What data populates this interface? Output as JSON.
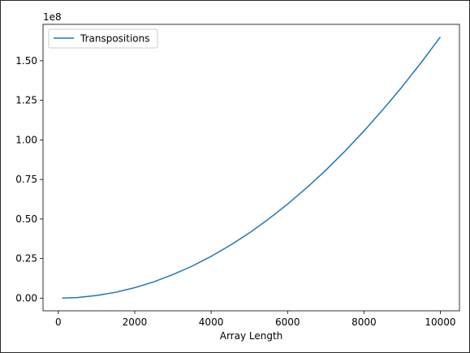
{
  "chart_data": {
    "type": "line",
    "title": "",
    "xlabel": "Array Length",
    "ylabel": "",
    "y_offset_label": "1e8",
    "xlim": [
      -400,
      10500
    ],
    "ylim": [
      -0.08,
      1.73
    ],
    "x_ticks": [
      0,
      2000,
      4000,
      6000,
      8000,
      10000
    ],
    "x_tick_labels": [
      "0",
      "2000",
      "4000",
      "6000",
      "8000",
      "10000"
    ],
    "y_ticks": [
      0,
      0.25,
      0.5,
      0.75,
      1.0,
      1.25,
      1.5
    ],
    "y_tick_labels": [
      "0.00",
      "0.25",
      "0.50",
      "0.75",
      "1.00",
      "1.25",
      "1.50"
    ],
    "grid": false,
    "legend_position": "top-left",
    "series": [
      {
        "name": "Transpositions",
        "color": "#1f77b4",
        "x": [
          100,
          500,
          1000,
          1500,
          2000,
          2500,
          3000,
          3500,
          4000,
          4500,
          5000,
          5500,
          6000,
          6500,
          7000,
          7500,
          8000,
          8500,
          9000,
          9500,
          10000
        ],
        "y": [
          0.0,
          0.004,
          0.017,
          0.037,
          0.066,
          0.103,
          0.149,
          0.202,
          0.264,
          0.334,
          0.412,
          0.499,
          0.594,
          0.697,
          0.808,
          0.928,
          1.056,
          1.192,
          1.336,
          1.489,
          1.65
        ]
      }
    ]
  }
}
